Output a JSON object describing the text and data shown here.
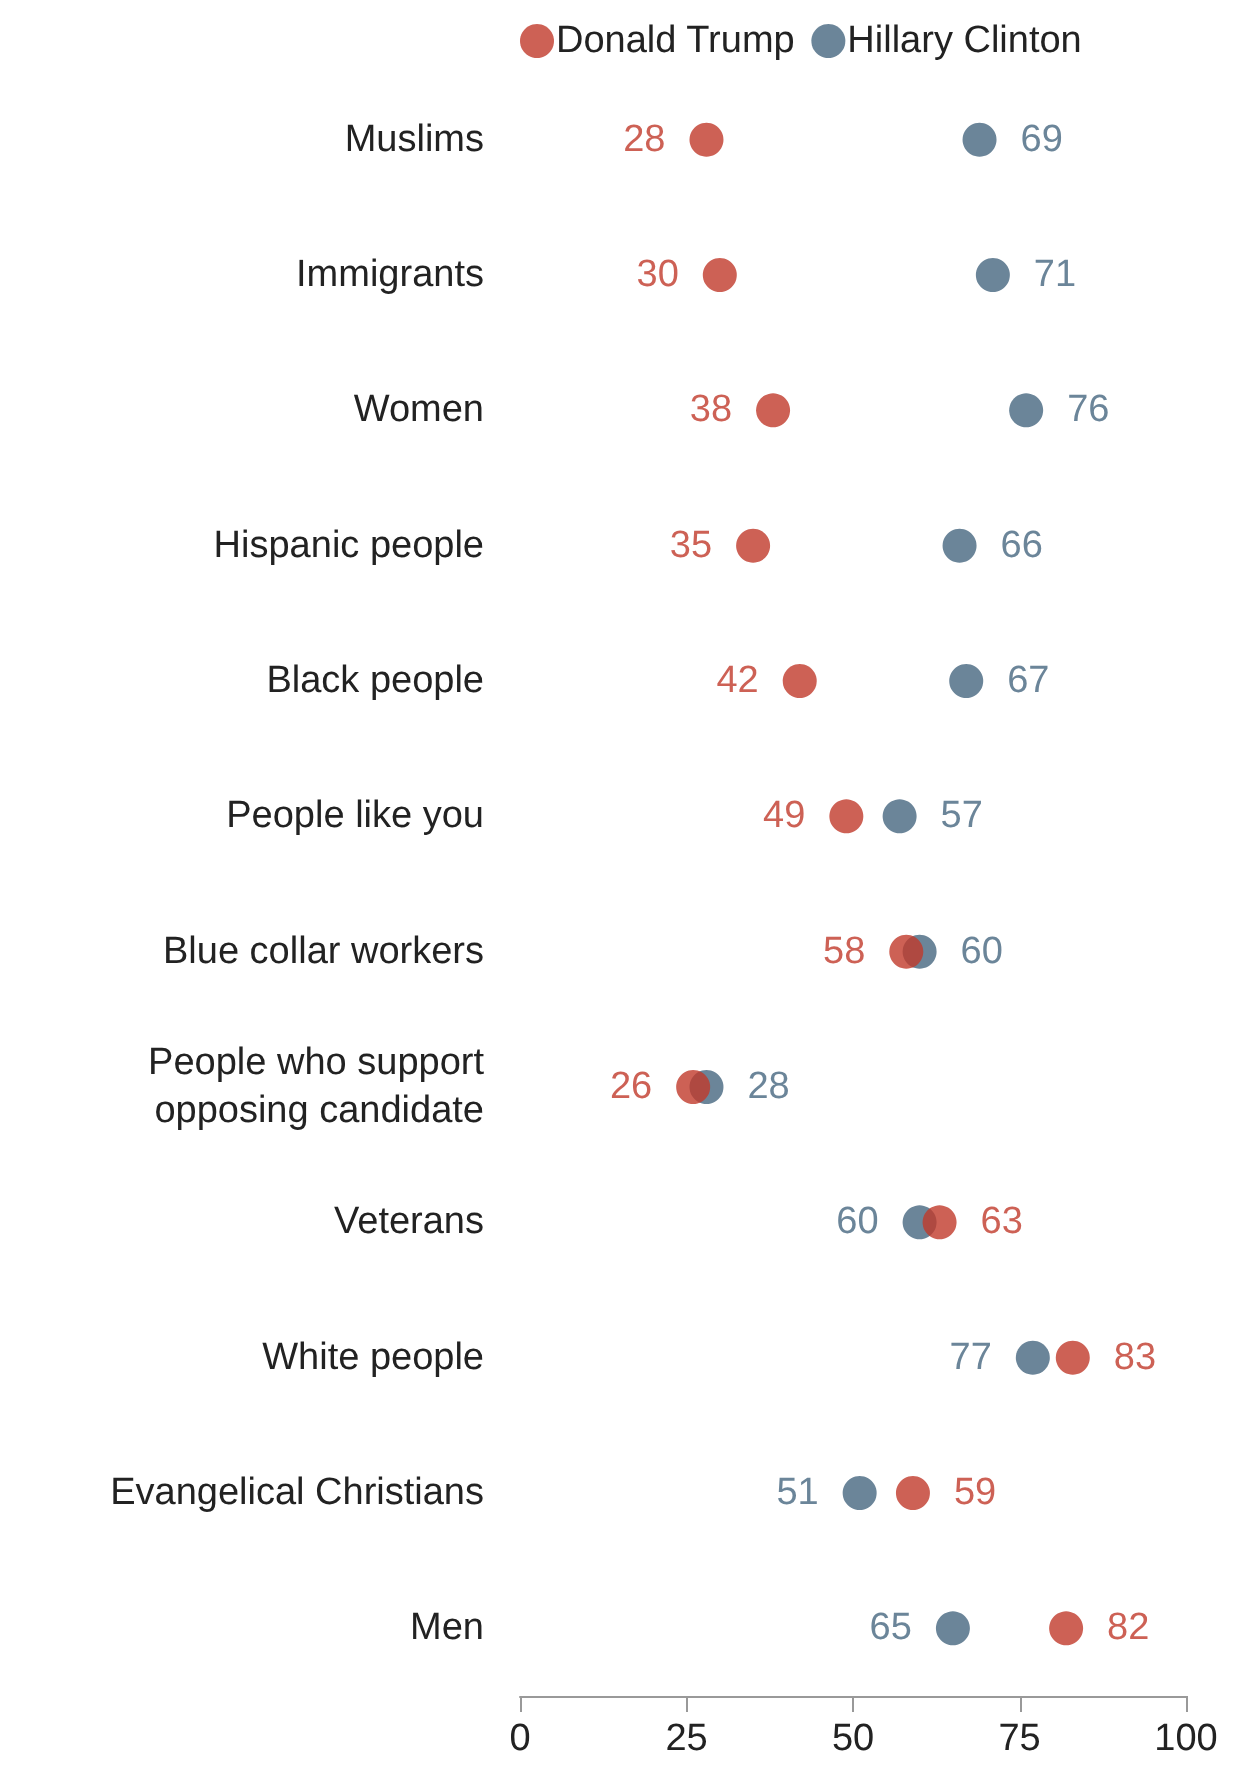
{
  "chart_data": {
    "type": "scatter",
    "orientation": "horizontal",
    "categories": [
      "Muslims",
      "Immigrants",
      "Women",
      "Hispanic people",
      "Black people",
      "People like you",
      "Blue collar workers",
      "People who support\nopposing candidate",
      "Veterans",
      "White people",
      "Evangelical Christians",
      "Men"
    ],
    "series": [
      {
        "name": "Donald Trump",
        "color": "#c0392b",
        "values": [
          28,
          30,
          38,
          35,
          42,
          49,
          58,
          26,
          63,
          83,
          59,
          82
        ]
      },
      {
        "name": "Hillary Clinton",
        "color": "#46667f",
        "values": [
          69,
          71,
          76,
          66,
          67,
          57,
          60,
          28,
          60,
          77,
          51,
          65
        ]
      }
    ],
    "xlim": [
      0,
      100
    ],
    "xticks": [
      0,
      25,
      50,
      75,
      100
    ],
    "data_labels": true,
    "legend": "top",
    "grid": false,
    "marker": "circle"
  }
}
